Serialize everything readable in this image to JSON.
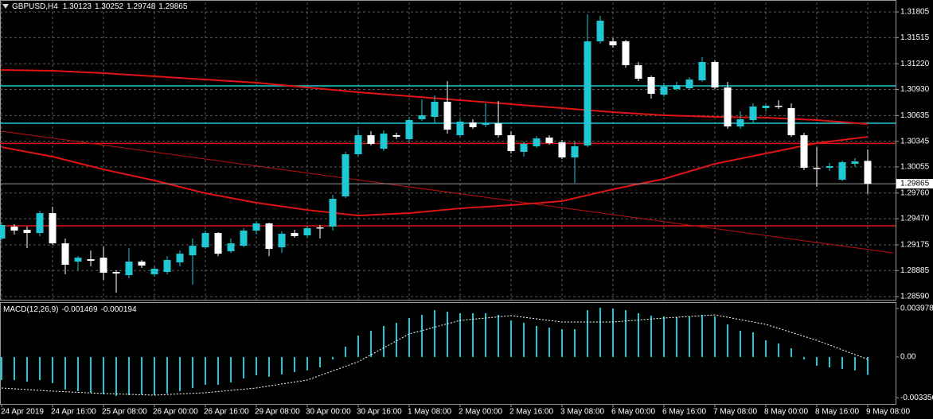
{
  "chart_data": [
    {
      "type": "candlestick",
      "symbol": "GBPUSD,H4",
      "categories": [
        "24 Apr 2019",
        null,
        null,
        null,
        "24 Apr 16:00",
        null,
        null,
        null,
        "25 Apr 08:00",
        null,
        null,
        null,
        "26 Apr 00:00",
        null,
        null,
        null,
        "26 Apr 16:00",
        null,
        null,
        null,
        "29 Apr 08:00",
        null,
        null,
        null,
        "30 Apr 00:00",
        null,
        null,
        null,
        "30 Apr 16:00",
        null,
        null,
        null,
        "1 May 08:00",
        null,
        null,
        null,
        "2 May 00:00",
        null,
        null,
        null,
        "2 May 16:00",
        null,
        null,
        null,
        "3 May 08:00",
        null,
        null,
        null,
        "6 May 00:00",
        null,
        null,
        null,
        "6 May 16:00",
        null,
        null,
        null,
        "7 May 08:00",
        null,
        null,
        null,
        "8 May 00:00",
        null,
        null,
        null,
        "8 May 16:00",
        null,
        null,
        null,
        "9 May 08:00"
      ],
      "open": [
        1.29246,
        1.29381,
        1.29345,
        1.29309,
        1.29533,
        1.29192,
        1.28986,
        1.29013,
        1.2903,
        1.28869,
        1.28833,
        1.28986,
        1.28842,
        1.28869,
        1.28977,
        1.29057,
        1.29147,
        1.29309,
        1.29102,
        1.29165,
        1.29336,
        1.29417,
        1.29147,
        1.29309,
        1.29282,
        1.29372,
        1.29381,
        1.29722,
        1.30198,
        1.30413,
        1.30261,
        1.30413,
        1.30368,
        1.30593,
        1.3062,
        1.30791,
        1.30413,
        1.30557,
        1.3053,
        1.30548,
        1.30413,
        1.30225,
        1.30288,
        1.30386,
        1.30333,
        1.30162,
        1.30297,
        1.31473,
        1.31473,
        1.31473,
        1.31204,
        1.31069,
        1.30871,
        1.30934,
        1.30943,
        1.31033,
        1.3124,
        1.30952,
        1.30512,
        1.30584,
        1.30719,
        1.30746,
        1.30719,
        1.30413,
        1.30045,
        1.30045,
        1.29911,
        1.3009,
        1.30123
      ],
      "high": [
        1.29426,
        1.29408,
        1.29381,
        1.2956,
        1.29605,
        1.29246,
        1.29048,
        1.29111,
        1.29156,
        1.28887,
        1.29138,
        1.29004,
        1.28932,
        1.29048,
        1.29111,
        1.29246,
        1.29336,
        1.29318,
        1.29246,
        1.29363,
        1.29444,
        1.29426,
        1.29327,
        1.29345,
        1.2939,
        1.29399,
        1.2974,
        1.30225,
        1.30476,
        1.30458,
        1.30467,
        1.3044,
        1.3062,
        1.30817,
        1.30862,
        1.31024,
        1.30593,
        1.30593,
        1.30773,
        1.308,
        1.30458,
        1.30342,
        1.30404,
        1.30413,
        1.3036,
        1.30342,
        1.31778,
        1.3176,
        1.31509,
        1.31491,
        1.3124,
        1.31087,
        1.31006,
        1.31015,
        1.31069,
        1.31293,
        1.31258,
        1.31015,
        1.30683,
        1.30773,
        1.30764,
        1.30809,
        1.30773,
        1.3044,
        1.30279,
        1.30099,
        1.30126,
        1.30153,
        1.30252
      ],
      "low": [
        1.29228,
        1.29291,
        1.29138,
        1.29273,
        1.29174,
        1.28842,
        1.28887,
        1.28932,
        1.28779,
        1.28635,
        1.28797,
        1.28914,
        1.28815,
        1.28842,
        1.28932,
        1.28725,
        1.29129,
        1.29048,
        1.29084,
        1.29147,
        1.29291,
        1.29048,
        1.29084,
        1.29255,
        1.29255,
        1.29246,
        1.29336,
        1.29704,
        1.30171,
        1.30297,
        1.30234,
        1.30368,
        1.30324,
        1.30575,
        1.30548,
        1.30431,
        1.30395,
        1.30485,
        1.30503,
        1.30386,
        1.30207,
        1.30171,
        1.3027,
        1.30306,
        1.30144,
        1.29875,
        1.30279,
        1.31446,
        1.31401,
        1.31177,
        1.31024,
        1.30826,
        1.30844,
        1.30916,
        1.30925,
        1.31015,
        1.30934,
        1.30485,
        1.30485,
        1.30557,
        1.30683,
        1.3071,
        1.30395,
        1.30018,
        1.2983,
        1.30009,
        1.29893,
        1.30054,
        1.29748
      ],
      "close": [
        1.29399,
        1.29336,
        1.29309,
        1.29533,
        1.29192,
        1.2895,
        1.2903,
        1.28995,
        1.2886,
        1.28851,
        1.28986,
        1.28941,
        1.28905,
        1.29004,
        1.29075,
        1.29165,
        1.29309,
        1.29075,
        1.29192,
        1.29336,
        1.29417,
        1.29129,
        1.293,
        1.29273,
        1.29363,
        1.29363,
        1.29695,
        1.30198,
        1.30413,
        1.30315,
        1.30431,
        1.30395,
        1.30584,
        1.30638,
        1.30791,
        1.30476,
        1.30566,
        1.30503,
        1.30548,
        1.30413,
        1.30234,
        1.30315,
        1.30377,
        1.30324,
        1.30162,
        1.30288,
        1.31473,
        1.31707,
        1.31428,
        1.31204,
        1.31051,
        1.3088,
        1.30961,
        1.30979,
        1.31042,
        1.3124,
        1.30952,
        1.30512,
        1.30593,
        1.30737,
        1.30746,
        1.30737,
        1.30413,
        1.30045,
        1.30036,
        1.30063,
        1.30108,
        1.30117,
        1.29865
      ],
      "up_color": "#1fc8d2",
      "down_color": "#ffffff",
      "price_line_color": "#9a9a9a",
      "ylim": [
        1.28555,
        1.31913
      ],
      "yticks": [
        1.31805,
        1.31515,
        {
          "value": 1.3122,
          "label": "1.31220"
        },
        {
          "value": 1.3093,
          "label": "1.30930"
        },
        1.30635,
        1.30345,
        1.30055,
        {
          "value": 1.2976,
          "label": "1.29760"
        },
        {
          "value": 1.2947,
          "label": "1.29470"
        },
        1.29175,
        1.28885,
        {
          "value": 1.2859,
          "label": "1.28590"
        }
      ],
      "grid": true,
      "lines": [
        {
          "color": "#e01414",
          "x": [
            0,
            4,
            8,
            12,
            16,
            20,
            24,
            28,
            32,
            36,
            40,
            44,
            48,
            52,
            56,
            60,
            64,
            68
          ],
          "values": [
            1.3115,
            1.31141,
            1.31114,
            1.31078,
            1.31042,
            1.31006,
            1.30952,
            1.30898,
            1.30853,
            1.30809,
            1.30764,
            1.30719,
            1.30674,
            1.30638,
            1.3062,
            1.30611,
            1.30584,
            1.30539
          ]
        },
        {
          "color": "#e01414",
          "x": [
            0,
            4,
            8,
            12,
            16,
            20,
            24,
            28,
            32,
            36,
            40,
            44,
            48,
            52,
            56,
            60,
            64,
            68
          ],
          "values": [
            1.30279,
            1.30171,
            1.30027,
            1.29902,
            1.29758,
            1.2965,
            1.29569,
            1.29506,
            1.29533,
            1.29587,
            1.29623,
            1.29668,
            1.29803,
            1.2992,
            1.3009,
            1.30207,
            1.30324,
            1.30395
          ]
        },
        {
          "color": "#c01010",
          "x": [
            0,
            70
          ],
          "values": [
            1.30458,
            1.29084
          ]
        }
      ],
      "hlines": [
        {
          "value": 1.3097,
          "color": "#1fc8d2"
        },
        {
          "value": 1.30548,
          "color": "#1fc8d2"
        },
        {
          "value": 1.3032,
          "color": "#e01414"
        },
        {
          "value": 1.2939,
          "color": "#e01414"
        }
      ]
    },
    {
      "type": "macd",
      "name": "MACD(12,26,9)",
      "series": [
        {
          "type": "bar",
          "color": "#1fc8d2",
          "values": [
            -0.001891,
            -0.001891,
            -0.002021,
            -0.001891,
            -0.002152,
            -0.002673,
            -0.002804,
            -0.002934,
            -0.003064,
            -0.003195,
            -0.00313,
            -0.003064,
            -0.00313,
            -0.002999,
            -0.002804,
            -0.002543,
            -0.002282,
            -0.002282,
            -0.002086,
            -0.00176,
            -0.0015,
            -0.00163,
            -0.001434,
            -0.001239,
            -0.001108,
            -0.000848,
            -0.000196,
            0.000848,
            0.00176,
            0.002152,
            0.002543,
            0.002804,
            0.003195,
            0.003456,
            0.003847,
            0.003716,
            0.003586,
            0.003586,
            0.003586,
            0.003456,
            0.002999,
            0.002804,
            0.002543,
            0.002412,
            0.002282,
            0.002282,
            0.003847,
            0.004042,
            0.003977,
            0.003847,
            0.003586,
            0.00339,
            0.003325,
            0.00326,
            0.003325,
            0.003456,
            0.003325,
            0.002673,
            0.002152,
            0.002021,
            0.001369,
            0.001108,
            0.000717,
            -0.000196,
            -0.000717,
            -0.000848,
            -0.000978,
            -0.001108,
            -0.001469
          ]
        },
        {
          "type": "line",
          "color": "#ffffff",
          "x": [
            0,
            4,
            8,
            12,
            16,
            20,
            24,
            28,
            32,
            36,
            40,
            44,
            48,
            52,
            56,
            60,
            64,
            68
          ],
          "values": [
            -0.002543,
            -0.002804,
            -0.002999,
            -0.00313,
            -0.002934,
            -0.002543,
            -0.001891,
            -0.000391,
            0.001891,
            0.002999,
            0.00339,
            0.002869,
            0.002869,
            0.003195,
            0.003456,
            0.002673,
            0.001369,
            -0.000194
          ]
        }
      ],
      "ylim": [
        -0.00385,
        0.00437
      ],
      "yticks": [
        0.003978,
        {
          "value": 0,
          "label": "0.00"
        },
        -0.003356
      ]
    }
  ]
}
